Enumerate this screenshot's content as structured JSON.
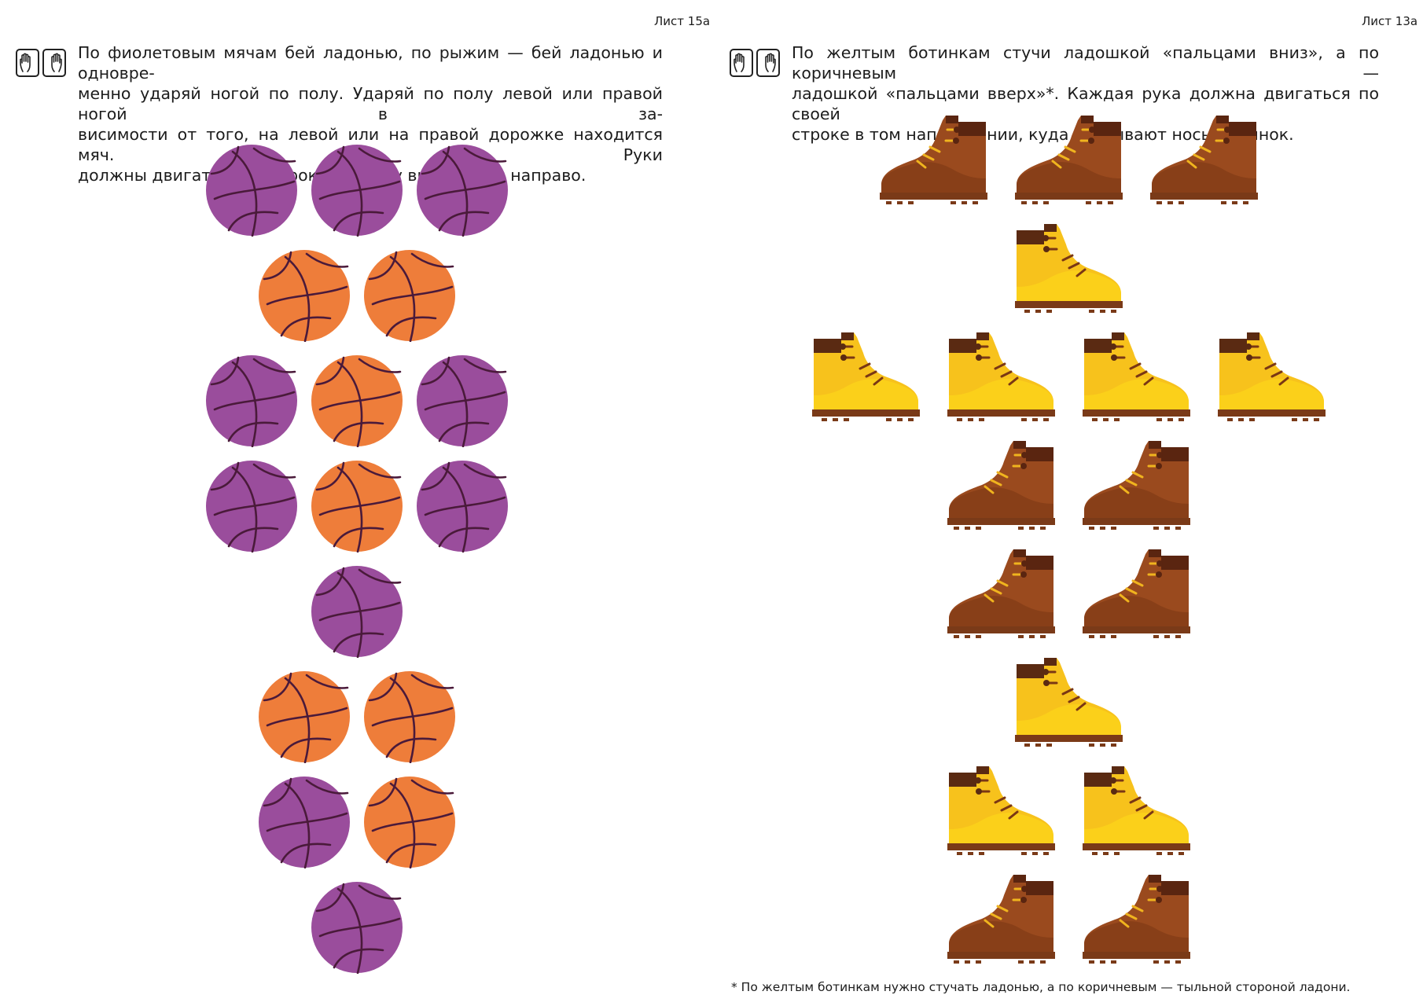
{
  "left_page": {
    "label": "Лист 15а",
    "instruction_lines": [
      "По фиолетовым мячам бей ладонью, по рыжим — бей ладонью и одновре-",
      "менно ударяй ногой по полу. Ударяй по полу левой или правой ногой в за-",
      "висимости от того, на левой или на правой дорожке находится мяч. Руки",
      "должны двигаться по строкам сверху вниз, слева направо."
    ],
    "icons": [
      "hand-palm-icon",
      "hand-palm-icon"
    ],
    "balls": [
      [
        "purple",
        "purple",
        "purple"
      ],
      [
        "orange",
        "orange"
      ],
      [
        "purple",
        "orange",
        "purple"
      ],
      [
        "purple",
        "orange",
        "purple"
      ],
      [
        "purple"
      ],
      [
        "orange",
        "orange"
      ],
      [
        "purple",
        "orange"
      ],
      [
        "purple"
      ]
    ]
  },
  "right_page": {
    "label": "Лист 13а",
    "instruction_lines": [
      "По желтым ботинкам стучи ладошкой «пальцами вниз», а по коричневым —",
      "ладошкой «пальцами вверх»*. Каждая рука должна двигаться по своей",
      "строке в том направлении, куда указывают носы ботинок."
    ],
    "icons": [
      "hand-palm-icon",
      "hand-palm-icon"
    ],
    "boots": [
      [
        "brown",
        "brown",
        "brown"
      ],
      [
        "yellow"
      ],
      [
        "yellow",
        "yellow",
        "yellow",
        "yellow"
      ],
      [
        "brown",
        "brown"
      ],
      [
        "brown",
        "brown"
      ],
      [
        "yellow"
      ],
      [
        "yellow",
        "yellow"
      ],
      [
        "brown",
        "brown"
      ]
    ],
    "footnote": "* По желтым ботинкам нужно стучать ладонью, а по коричневым — тыльной стороной ладони."
  },
  "colors": {
    "purple_ball": "#9a4d9c",
    "orange_ball": "#ee7d3a",
    "ball_line": "#4a1a3a",
    "brown_boot": "#9a4a1e",
    "brown_boot_dark": "#7a3714",
    "brown_boot_collar": "#5a2510",
    "yellow_boot": "#f7c21c",
    "yellow_boot_light": "#ffdc1a",
    "yellow_boot_collar": "#5a2a12",
    "lace": "#f0b41e",
    "sole": "#7a3a18"
  }
}
